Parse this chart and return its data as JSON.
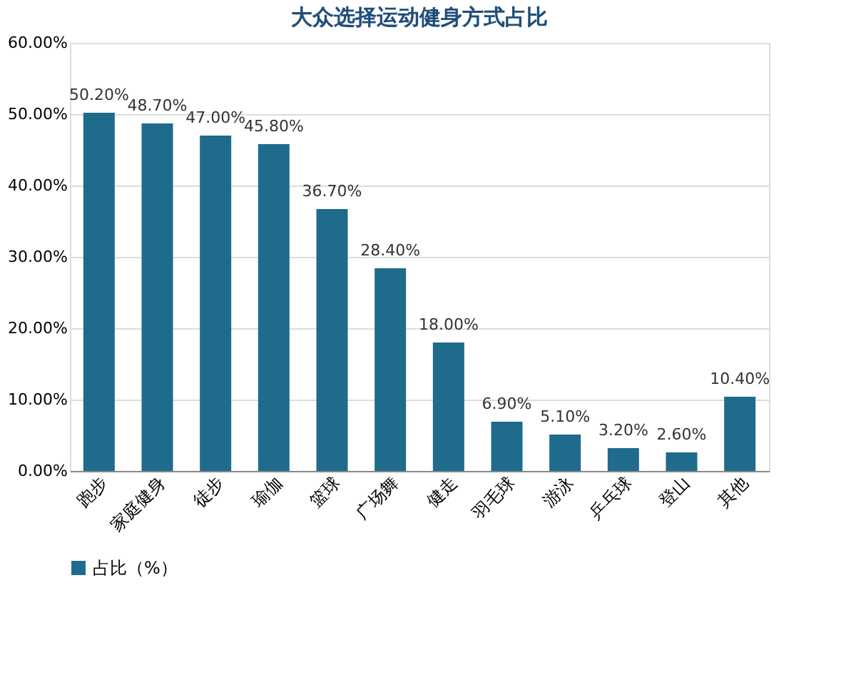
{
  "chart_data": {
    "type": "bar",
    "title": "大众选择运动健身方式占比",
    "categories": [
      "跑步",
      "家庭健身",
      "徒步",
      "瑜伽",
      "篮球",
      "广场舞",
      "健走",
      "羽毛球",
      "游泳",
      "乒乓球",
      "登山",
      "其他"
    ],
    "series": [
      {
        "name": "占比（%）",
        "color": "#1f6b8c",
        "values": [
          50.2,
          48.7,
          47.0,
          45.8,
          36.7,
          28.4,
          18.0,
          6.9,
          5.1,
          3.2,
          2.6,
          10.4
        ],
        "value_labels": [
          "50.20%",
          "48.70%",
          "47.00%",
          "45.80%",
          "36.70%",
          "28.40%",
          "18.00%",
          "6.90%",
          "5.10%",
          "3.20%",
          "2.60%",
          "10.40%"
        ]
      }
    ],
    "ylim": [
      0,
      60
    ],
    "yticks": [
      {
        "value": 0,
        "label": "0.00%"
      },
      {
        "value": 10,
        "label": "10.00%"
      },
      {
        "value": 20,
        "label": "20.00%"
      },
      {
        "value": 30,
        "label": "30.00%"
      },
      {
        "value": 40,
        "label": "40.00%"
      },
      {
        "value": 50,
        "label": "50.00%"
      },
      {
        "value": 60,
        "label": "60.00%"
      }
    ],
    "grid": "y",
    "legend": "bottom"
  }
}
